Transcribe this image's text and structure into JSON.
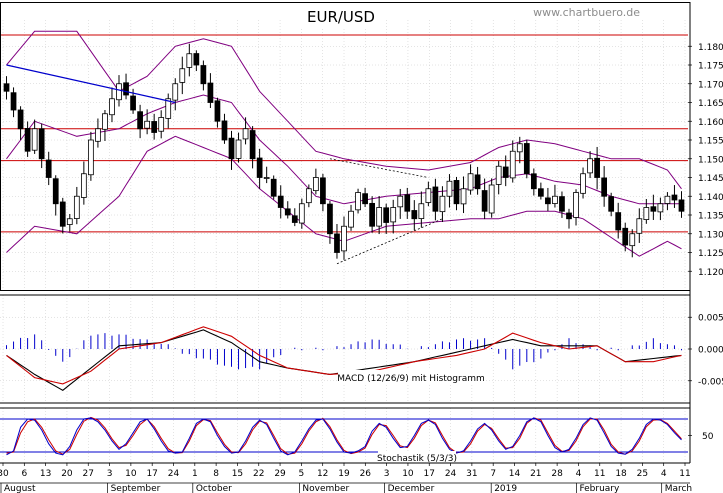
{
  "chart_data": {
    "type": "candlestick",
    "title": "EUR/USD",
    "watermark": "www.chartbuero.de",
    "colors": {
      "background": "#ffffff",
      "candle_body": "#000000",
      "bollinger": "#800080",
      "horizontal_lines": "#cc0000",
      "trend_line": "#0000cc",
      "macd_line": "#000000",
      "signal_line": "#cc0000",
      "histogram": "#0000cc",
      "stoch_k": "#0000cc",
      "stoch_d": "#cc0000",
      "stoch_levels": "#0000cc",
      "grid": "#c8c8c8",
      "axis_text": "#000000"
    },
    "price_panel": {
      "ylim": [
        1.115,
        1.187
      ],
      "yticks": [
        "1.180",
        "1.175",
        "1.170",
        "1.165",
        "1.160",
        "1.155",
        "1.150",
        "1.145",
        "1.140",
        "1.135",
        "1.130",
        "1.125",
        "1.120"
      ],
      "horizontal_levels": [
        1.183,
        1.158,
        1.1495,
        1.1305
      ]
    },
    "macd_panel": {
      "label": "MACD (12/26/9) mit Histogramm",
      "ylim": [
        -0.0085,
        0.0085
      ],
      "yticks": [
        "0.005",
        "0.000",
        "-0.005"
      ]
    },
    "stoch_panel": {
      "label": "Stochastik (5/3/3)",
      "ylim": [
        0,
        100
      ],
      "yticks": [
        "50"
      ],
      "levels": [
        80,
        20
      ]
    },
    "x_day_ticks": [
      "30",
      "6",
      "13",
      "20",
      "27",
      "3",
      "10",
      "17",
      "24",
      "1",
      "8",
      "15",
      "22",
      "29",
      "5",
      "12",
      "19",
      "26",
      "3",
      "10",
      "17",
      "24",
      "31",
      "7",
      "14",
      "21",
      "28",
      "4",
      "11",
      "18",
      "25",
      "4",
      "11"
    ],
    "x_months": [
      {
        "label": "August",
        "index": 0
      },
      {
        "label": "September",
        "index": 5
      },
      {
        "label": "October",
        "index": 9
      },
      {
        "label": "November",
        "index": 14
      },
      {
        "label": "December",
        "index": 18
      },
      {
        "label": "2019",
        "index": 23
      },
      {
        "label": "February",
        "index": 27
      },
      {
        "label": "March",
        "index": 31
      }
    ],
    "close_anchors": [
      [
        0,
        1.168
      ],
      [
        1,
        1.163
      ],
      [
        2,
        1.158
      ],
      [
        3,
        1.152
      ],
      [
        4,
        1.158
      ],
      [
        5,
        1.15
      ],
      [
        6,
        1.145
      ],
      [
        7,
        1.138
      ],
      [
        8,
        1.132
      ],
      [
        9,
        1.134
      ],
      [
        10,
        1.14
      ],
      [
        11,
        1.146
      ],
      [
        12,
        1.155
      ],
      [
        13,
        1.158
      ],
      [
        14,
        1.162
      ],
      [
        15,
        1.166
      ],
      [
        16,
        1.17
      ],
      [
        17,
        1.167
      ],
      [
        18,
        1.163
      ],
      [
        19,
        1.158
      ],
      [
        20,
        1.16
      ],
      [
        21,
        1.157
      ],
      [
        22,
        1.161
      ],
      [
        23,
        1.166
      ],
      [
        24,
        1.17
      ],
      [
        25,
        1.174
      ],
      [
        26,
        1.178
      ],
      [
        27,
        1.175
      ],
      [
        28,
        1.17
      ],
      [
        29,
        1.165
      ],
      [
        30,
        1.16
      ],
      [
        31,
        1.155
      ],
      [
        32,
        1.15
      ],
      [
        33,
        1.155
      ],
      [
        34,
        1.158
      ],
      [
        35,
        1.15
      ],
      [
        36,
        1.145
      ],
      [
        37,
        1.145
      ],
      [
        38,
        1.14
      ],
      [
        39,
        1.137
      ],
      [
        40,
        1.135
      ],
      [
        41,
        1.133
      ],
      [
        42,
        1.138
      ],
      [
        43,
        1.142
      ],
      [
        44,
        1.145
      ],
      [
        45,
        1.138
      ],
      [
        46,
        1.13
      ],
      [
        47,
        1.125
      ],
      [
        48,
        1.132
      ],
      [
        49,
        1.136
      ],
      [
        50,
        1.141
      ],
      [
        51,
        1.138
      ],
      [
        52,
        1.132
      ],
      [
        53,
        1.137
      ],
      [
        54,
        1.133
      ],
      [
        55,
        1.137
      ],
      [
        56,
        1.14
      ],
      [
        57,
        1.136
      ],
      [
        58,
        1.134
      ],
      [
        59,
        1.138
      ],
      [
        60,
        1.142
      ],
      [
        61,
        1.136
      ],
      [
        62,
        1.14
      ],
      [
        63,
        1.144
      ],
      [
        64,
        1.138
      ],
      [
        65,
        1.142
      ],
      [
        66,
        1.146
      ],
      [
        67,
        1.142
      ],
      [
        68,
        1.136
      ],
      [
        69,
        1.143
      ],
      [
        70,
        1.148
      ],
      [
        71,
        1.145
      ],
      [
        72,
        1.152
      ],
      [
        73,
        1.154
      ],
      [
        74,
        1.146
      ],
      [
        75,
        1.142
      ],
      [
        76,
        1.14
      ],
      [
        77,
        1.138
      ],
      [
        78,
        1.14
      ],
      [
        79,
        1.136
      ],
      [
        80,
        1.134
      ],
      [
        81,
        1.141
      ],
      [
        82,
        1.146
      ],
      [
        83,
        1.15
      ],
      [
        84,
        1.145
      ],
      [
        85,
        1.14
      ],
      [
        86,
        1.136
      ],
      [
        87,
        1.131
      ],
      [
        88,
        1.127
      ],
      [
        89,
        1.13
      ],
      [
        90,
        1.134
      ],
      [
        91,
        1.137
      ],
      [
        92,
        1.136
      ],
      [
        93,
        1.138
      ],
      [
        94,
        1.14
      ],
      [
        95,
        1.139
      ],
      [
        96,
        1.136
      ]
    ],
    "bollinger_anchors": [
      [
        0,
        1.175,
        1.15,
        1.125
      ],
      [
        4,
        1.184,
        1.16,
        1.132
      ],
      [
        10,
        1.184,
        1.156,
        1.13
      ],
      [
        16,
        1.168,
        1.158,
        1.14
      ],
      [
        20,
        1.172,
        1.162,
        1.152
      ],
      [
        24,
        1.18,
        1.165,
        1.156
      ],
      [
        28,
        1.182,
        1.167,
        1.153
      ],
      [
        32,
        1.18,
        1.165,
        1.15
      ],
      [
        36,
        1.168,
        1.155,
        1.142
      ],
      [
        40,
        1.16,
        1.148,
        1.136
      ],
      [
        44,
        1.152,
        1.14,
        1.13
      ],
      [
        48,
        1.15,
        1.138,
        1.128
      ],
      [
        54,
        1.148,
        1.14,
        1.132
      ],
      [
        60,
        1.147,
        1.141,
        1.133
      ],
      [
        66,
        1.149,
        1.142,
        1.134
      ],
      [
        70,
        1.153,
        1.145,
        1.134
      ],
      [
        74,
        1.155,
        1.146,
        1.136
      ],
      [
        78,
        1.154,
        1.144,
        1.136
      ],
      [
        82,
        1.152,
        1.143,
        1.134
      ],
      [
        86,
        1.15,
        1.14,
        1.129
      ],
      [
        90,
        1.15,
        1.138,
        1.124
      ],
      [
        94,
        1.147,
        1.138,
        1.128
      ],
      [
        96,
        1.142,
        1.138,
        1.126
      ]
    ],
    "trend_line": [
      [
        0,
        1.175
      ],
      [
        24,
        1.165
      ]
    ],
    "channel_line": [
      [
        46,
        1.15
      ],
      [
        60,
        1.145
      ]
    ],
    "wedge_line": [
      [
        47,
        1.122
      ],
      [
        62,
        1.134
      ]
    ],
    "macd_anchors": [
      [
        0,
        -0.001
      ],
      [
        4,
        -0.004
      ],
      [
        8,
        -0.0065
      ],
      [
        12,
        -0.003
      ],
      [
        16,
        0.0005
      ],
      [
        22,
        0.001
      ],
      [
        28,
        0.003
      ],
      [
        32,
        0.001
      ],
      [
        36,
        -0.002
      ],
      [
        40,
        -0.003
      ],
      [
        46,
        -0.004
      ],
      [
        52,
        -0.003
      ],
      [
        58,
        -0.002
      ],
      [
        64,
        -0.0005
      ],
      [
        68,
        0.0005
      ],
      [
        72,
        0.0015
      ],
      [
        76,
        0.0005
      ],
      [
        80,
        0.0005
      ],
      [
        84,
        0.0005
      ],
      [
        88,
        -0.002
      ],
      [
        92,
        -0.0015
      ],
      [
        96,
        -0.001
      ]
    ],
    "signal_anchors": [
      [
        0,
        -0.001
      ],
      [
        4,
        -0.0045
      ],
      [
        8,
        -0.0055
      ],
      [
        12,
        -0.0035
      ],
      [
        16,
        0.0
      ],
      [
        22,
        0.001
      ],
      [
        28,
        0.0035
      ],
      [
        32,
        0.002
      ],
      [
        36,
        -0.001
      ],
      [
        40,
        -0.003
      ],
      [
        46,
        -0.004
      ],
      [
        52,
        -0.0035
      ],
      [
        58,
        -0.002
      ],
      [
        64,
        -0.001
      ],
      [
        68,
        0.0
      ],
      [
        72,
        0.0025
      ],
      [
        76,
        0.001
      ],
      [
        80,
        0.0
      ],
      [
        84,
        0.0005
      ],
      [
        88,
        -0.002
      ],
      [
        92,
        -0.002
      ],
      [
        96,
        -0.001
      ]
    ],
    "stoch_k": [
      15,
      22,
      65,
      80,
      78,
      60,
      35,
      18,
      15,
      30,
      60,
      80,
      82,
      75,
      60,
      40,
      25,
      35,
      55,
      75,
      80,
      62,
      40,
      22,
      18,
      20,
      45,
      72,
      80,
      75,
      50,
      30,
      18,
      20,
      40,
      65,
      78,
      70,
      45,
      22,
      15,
      20,
      40,
      62,
      78,
      80,
      62,
      38,
      20,
      18,
      22,
      30,
      58,
      72,
      65,
      45,
      28,
      30,
      50,
      72,
      78,
      70,
      45,
      25,
      18,
      22,
      40,
      62,
      72,
      60,
      40,
      25,
      30,
      50,
      75,
      82,
      75,
      50,
      28,
      20,
      25,
      45,
      70,
      82,
      78,
      55,
      30,
      18,
      16,
      25,
      45,
      70,
      80,
      78,
      70,
      55,
      42
    ],
    "stoch_d": [
      18,
      20,
      55,
      75,
      80,
      65,
      42,
      22,
      16,
      25,
      52,
      76,
      83,
      78,
      64,
      44,
      28,
      32,
      50,
      70,
      80,
      66,
      45,
      26,
      18,
      19,
      40,
      68,
      79,
      77,
      55,
      34,
      20,
      19,
      35,
      60,
      76,
      73,
      50,
      26,
      16,
      18,
      35,
      58,
      75,
      81,
      66,
      42,
      23,
      17,
      20,
      27,
      52,
      70,
      68,
      50,
      31,
      28,
      45,
      68,
      78,
      73,
      50,
      28,
      19,
      20,
      35,
      58,
      70,
      63,
      44,
      27,
      28,
      45,
      72,
      82,
      78,
      55,
      32,
      21,
      23,
      40,
      66,
      80,
      80,
      60,
      34,
      20,
      16,
      22,
      40,
      66,
      78,
      79,
      72,
      58,
      44
    ]
  }
}
